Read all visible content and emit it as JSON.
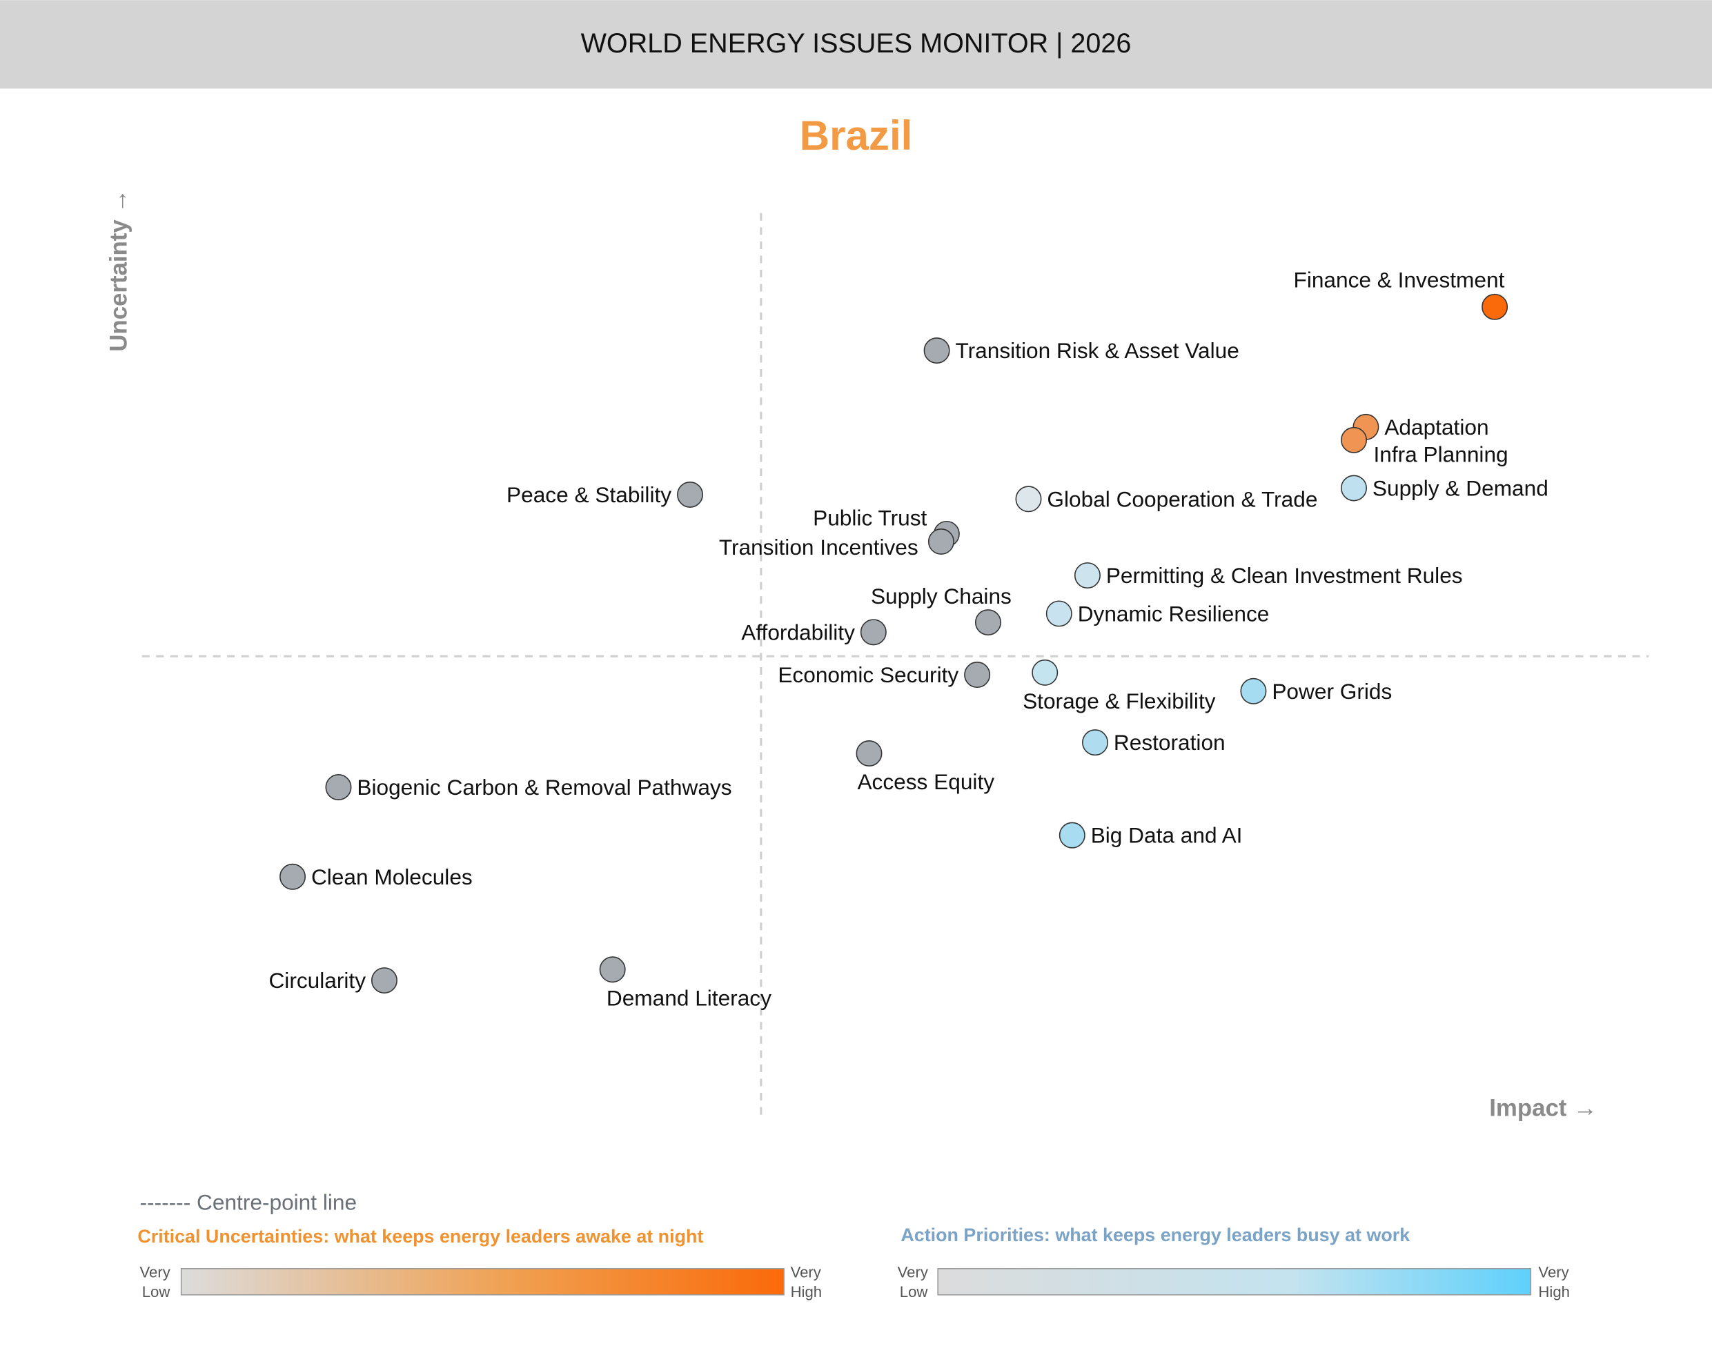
{
  "header": {
    "title": "WORLD ENERGY ISSUES MONITOR | 2026"
  },
  "chart_data": {
    "type": "scatter",
    "title": "Brazil",
    "xlabel": "Impact →",
    "ylabel": "Uncertainty →",
    "xlim": [
      -5.67,
      8.13
    ],
    "ylim": [
      -4.24,
      4.06
    ],
    "centre_point": [
      0,
      0
    ],
    "grid": false,
    "points": [
      {
        "label": "Finance & Investment",
        "x": 6.72,
        "y": 3.2,
        "color": "#fa6a0a",
        "label_side": "above-left"
      },
      {
        "label": "Transition Risk & Asset Value",
        "x": 1.61,
        "y": 2.8,
        "color": "#a5abb0",
        "label_side": "right"
      },
      {
        "label": "Adaptation",
        "x": 5.54,
        "y": 2.1,
        "color": "#ef9452",
        "label_side": "right"
      },
      {
        "label": "Infra Planning",
        "x": 5.43,
        "y": 1.98,
        "color": "#ef9452",
        "label_side": "below-right"
      },
      {
        "label": "Peace & Stability",
        "x": -0.65,
        "y": 1.48,
        "color": "#a5abb0",
        "label_side": "left"
      },
      {
        "label": "Global Cooperation & Trade",
        "x": 2.45,
        "y": 1.44,
        "color": "#dde6ea",
        "label_side": "right"
      },
      {
        "label": "Supply & Demand",
        "x": 5.43,
        "y": 1.54,
        "color": "#bfe0ef",
        "label_side": "right"
      },
      {
        "label": "Public Trust",
        "x": 1.7,
        "y": 1.12,
        "color": "#a5abb0",
        "label_side": "above-left"
      },
      {
        "label": "Transition Incentives",
        "x": 1.65,
        "y": 1.05,
        "color": "#a5abb0",
        "label_side": "left"
      },
      {
        "label": "Permitting & Clean Investment Rules",
        "x": 2.99,
        "y": 0.74,
        "color": "#cde3ee",
        "label_side": "right"
      },
      {
        "label": "Supply Chains",
        "x": 2.08,
        "y": 0.31,
        "color": "#a5abb0",
        "label_side": "above"
      },
      {
        "label": "Dynamic Resilience",
        "x": 2.73,
        "y": 0.39,
        "color": "#c8e3ef",
        "label_side": "right"
      },
      {
        "label": "Affordability",
        "x": 1.03,
        "y": 0.22,
        "color": "#a5abb0",
        "label_side": "left"
      },
      {
        "label": "Economic Security",
        "x": 1.98,
        "y": -0.17,
        "color": "#a5abb0",
        "label_side": "left"
      },
      {
        "label": "Storage & Flexibility",
        "x": 2.6,
        "y": -0.15,
        "color": "#c4e4f0",
        "label_side": "below"
      },
      {
        "label": "Power Grids",
        "x": 4.51,
        "y": -0.32,
        "color": "#a6dcf2",
        "label_side": "right"
      },
      {
        "label": "Restoration",
        "x": 3.06,
        "y": -0.79,
        "color": "#b0dcef",
        "label_side": "right"
      },
      {
        "label": "Access Equity",
        "x": 0.99,
        "y": -0.89,
        "color": "#a5abb0",
        "label_side": "below"
      },
      {
        "label": "Biogenic Carbon & Removal Pathways",
        "x": -3.87,
        "y": -1.2,
        "color": "#a5abb0",
        "label_side": "right"
      },
      {
        "label": "Big Data and AI",
        "x": 2.85,
        "y": -1.64,
        "color": "#a7dcf1",
        "label_side": "right"
      },
      {
        "label": "Clean Molecules",
        "x": -4.29,
        "y": -2.02,
        "color": "#a5abb0",
        "label_side": "right"
      },
      {
        "label": "Circularity",
        "x": -3.45,
        "y": -2.97,
        "color": "#a5abb0",
        "label_side": "left"
      },
      {
        "label": "Demand Literacy",
        "x": -1.36,
        "y": -2.87,
        "color": "#a5abb0",
        "label_side": "below"
      }
    ]
  },
  "legend": {
    "centre_line": "------- Centre-point line",
    "critical": {
      "title": "Critical Uncertainties: what keeps energy leaders awake at night",
      "low": [
        "Very",
        "Low"
      ],
      "high": [
        "Very",
        "High"
      ],
      "colors": [
        "#dcdcdc",
        "#fa6a0a"
      ],
      "title_color": "#f0922f"
    },
    "action": {
      "title": "Action Priorities: what keeps energy leaders busy at work",
      "low": [
        "Very",
        "Low"
      ],
      "high": [
        "Very",
        "High"
      ],
      "colors": [
        "#dcdcdc",
        "#5fd0fb"
      ],
      "title_color": "#7ba3c6"
    }
  }
}
